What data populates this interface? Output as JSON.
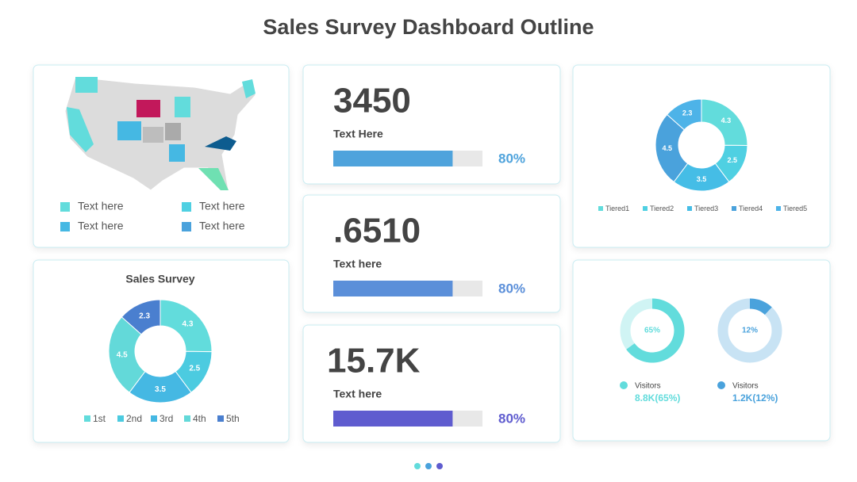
{
  "title": "Sales Survey Dashboard Outline",
  "map": {
    "legend": [
      "Text here",
      "Text here",
      "Text here",
      "Text here"
    ]
  },
  "kpis": [
    {
      "value": "3450",
      "label": "Text Here",
      "percent": 80,
      "percent_label": "80%",
      "color": "#4fa3dc"
    },
    {
      "value": ".6510",
      "label": "Text here",
      "percent": 80,
      "percent_label": "80%",
      "color": "#5b8fd9"
    },
    {
      "value": "15.7K",
      "label": "Text here",
      "percent": 80,
      "percent_label": "80%",
      "color": "#5f5ccf"
    }
  ],
  "sales_survey": {
    "title": "Sales Survey",
    "categories": [
      "1st",
      "2nd",
      "3rd",
      "4th",
      "5th"
    ],
    "values": [
      4.3,
      2.5,
      3.5,
      4.5,
      2.3
    ],
    "colors": [
      "#62dcdc",
      "#4ccbe0",
      "#45b8e3",
      "#63d9d9",
      "#4a7fcf"
    ]
  },
  "tiered": {
    "categories": [
      "Tiered1",
      "Tiered2",
      "Tiered3",
      "Tiered4",
      "Tiered5"
    ],
    "values": [
      4.3,
      2.5,
      3.5,
      4.5,
      2.3
    ],
    "colors": [
      "#62dcdc",
      "#4fd0e2",
      "#45bde6",
      "#4aa2dc",
      "#4db3e8"
    ]
  },
  "gauges": [
    {
      "value": 65,
      "value_label": "65%",
      "caption": "Visitors",
      "detail": "8.8K(65%)",
      "color": "#62dcdc"
    },
    {
      "value": 12,
      "value_label": "12%",
      "caption": "Visitors",
      "detail": "1.2K(12%)",
      "color": "#4aa2dc"
    }
  ]
}
